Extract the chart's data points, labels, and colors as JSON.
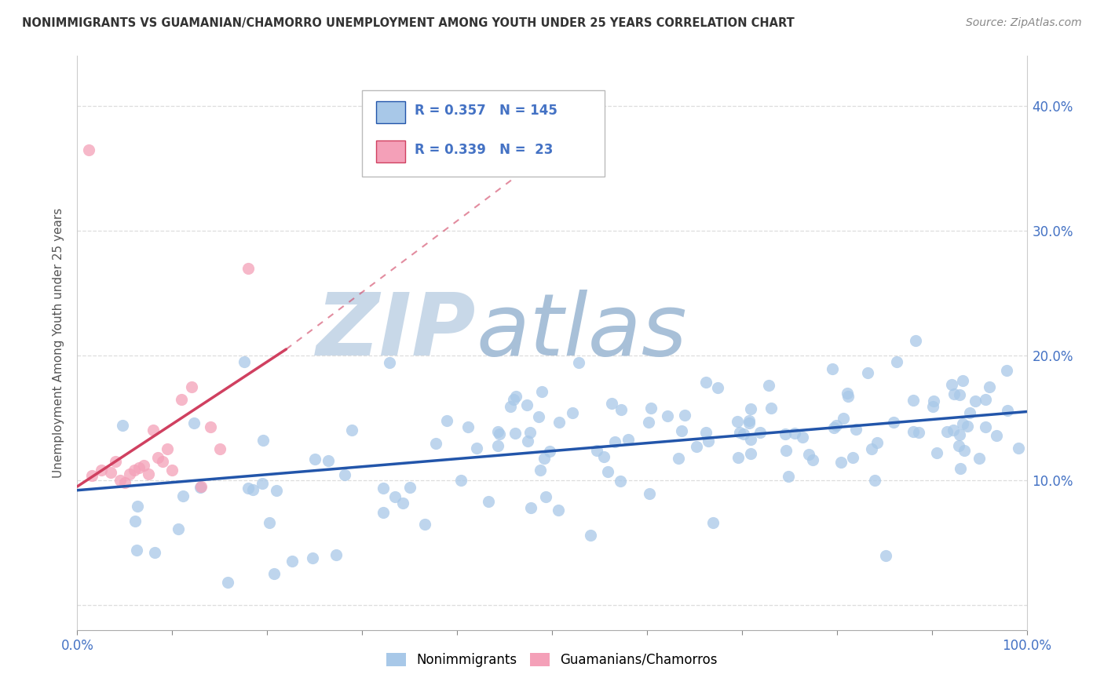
{
  "title": "NONIMMIGRANTS VS GUAMANIAN/CHAMORRO UNEMPLOYMENT AMONG YOUTH UNDER 25 YEARS CORRELATION CHART",
  "source": "Source: ZipAtlas.com",
  "ylabel": "Unemployment Among Youth under 25 years",
  "xlim": [
    0.0,
    1.0
  ],
  "ylim": [
    -0.02,
    0.44
  ],
  "blue_color": "#a8c8e8",
  "pink_color": "#f4a0b8",
  "blue_line_color": "#2255aa",
  "pink_line_color": "#d04060",
  "legend_R1": "0.357",
  "legend_N1": "145",
  "legend_R2": "0.339",
  "legend_N2": "23",
  "watermark_zip": "ZIP",
  "watermark_atlas": "atlas",
  "watermark_zip_color": "#c8d8e8",
  "watermark_atlas_color": "#a8c0d8",
  "background_color": "#ffffff",
  "grid_color": "#dddddd",
  "tick_color": "#4472c4",
  "label_color": "#555555",
  "legend_text_color": "#4472c4",
  "blue_line_start_y": 0.092,
  "blue_line_end_y": 0.155,
  "pink_line_start_x": 0.0,
  "pink_line_start_y": 0.095,
  "pink_line_end_x": 0.22,
  "pink_line_end_y": 0.205,
  "pink_line_ext_end_x": 0.5,
  "pink_line_ext_end_y": 0.365
}
